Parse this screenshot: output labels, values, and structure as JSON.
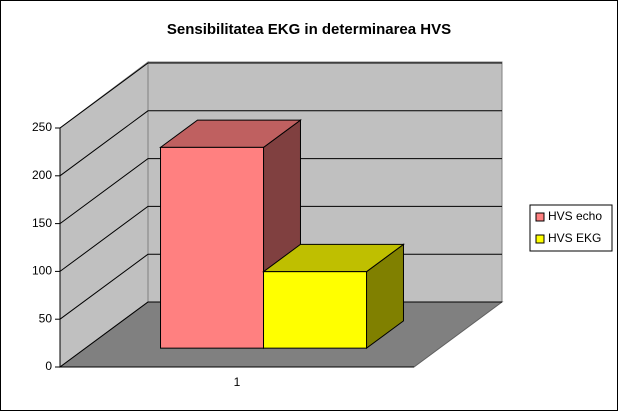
{
  "chart_data": {
    "type": "bar3d",
    "title": "Sensibilitatea EKG in determinarea HVS",
    "categories": [
      "1"
    ],
    "series": [
      {
        "name": "HVS echo",
        "color": "#ff8080",
        "values": [
          210
        ]
      },
      {
        "name": "HVS EKG",
        "color": "#ffff00",
        "values": [
          80
        ]
      }
    ],
    "ylim": [
      0,
      250
    ],
    "yticks": [
      0,
      50,
      100,
      150,
      200,
      250
    ],
    "grid": true,
    "legend": "right"
  }
}
